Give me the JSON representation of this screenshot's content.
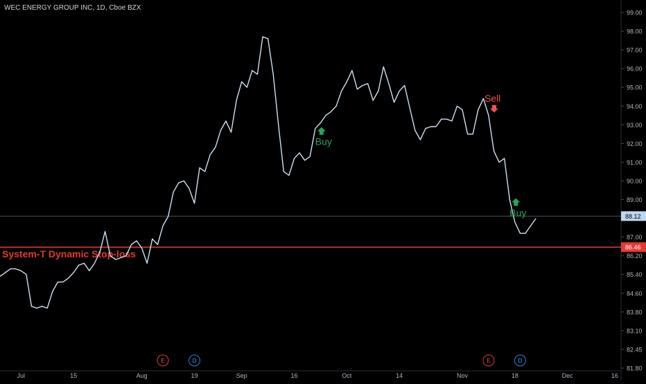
{
  "header": {
    "title": "WEC ENERGY GROUP INC, 1D, Cboe BZX"
  },
  "colors": {
    "background": "#000000",
    "line": "#cfe3f5",
    "stop_line": "#e53935",
    "buy": "#26a65b",
    "sell": "#ef5350",
    "axis_text": "#b2b5be",
    "last_price_bg": "#bcd7f1",
    "stop_badge_bg": "#e53935"
  },
  "chart_data": {
    "type": "line",
    "title": "WEC ENERGY GROUP INC, 1D, Cboe BZX",
    "y_ticks": [
      "99.00",
      "98.00",
      "97.00",
      "96.00",
      "95.00",
      "94.00",
      "93.00",
      "92.00",
      "91.00",
      "90.00",
      "89.00",
      "88.00",
      "87.00",
      "86.20",
      "85.40",
      "84.60",
      "83.80",
      "83.10",
      "82.45",
      "81.80"
    ],
    "x_ticks": [
      {
        "label": "Jul",
        "index": 4
      },
      {
        "label": "15",
        "index": 14
      },
      {
        "label": "Aug",
        "index": 27
      },
      {
        "label": "19",
        "index": 37
      },
      {
        "label": "Sep",
        "index": 46
      },
      {
        "label": "16",
        "index": 56
      },
      {
        "label": "Oct",
        "index": 66
      },
      {
        "label": "14",
        "index": 76
      },
      {
        "label": "Nov",
        "index": 88
      },
      {
        "label": "18",
        "index": 98
      },
      {
        "label": "Dec",
        "index": 108
      },
      {
        "label": "16",
        "index": 117
      }
    ],
    "series": [
      {
        "values": [
          84.9,
          85.1,
          85.3,
          85.3,
          85.2,
          85.0,
          83.3,
          83.2,
          83.3,
          83.2,
          84.1,
          84.6,
          84.6,
          84.8,
          85.1,
          85.5,
          85.6,
          85.2,
          85.6,
          86.2,
          87.3,
          86.0,
          85.8,
          85.9,
          86.0,
          86.6,
          86.8,
          86.4,
          85.6,
          86.9,
          86.6,
          87.6,
          88.1,
          89.4,
          89.9,
          90.0,
          89.6,
          88.8,
          90.7,
          90.5,
          91.4,
          91.8,
          92.7,
          93.2,
          92.6,
          94.3,
          95.3,
          95.0,
          95.9,
          95.7,
          97.7,
          97.6,
          95.7,
          93.0,
          90.5,
          90.3,
          91.2,
          91.5,
          91.1,
          91.3,
          92.8,
          93.1,
          93.5,
          93.7,
          94.0,
          94.8,
          95.3,
          95.9,
          94.9,
          95.1,
          95.2,
          94.3,
          94.8,
          96.1,
          95.2,
          94.2,
          94.8,
          95.1,
          93.9,
          92.7,
          92.2,
          92.8,
          92.9,
          92.9,
          93.3,
          93.3,
          93.2,
          94.0,
          93.8,
          92.5,
          92.5,
          93.8,
          94.4,
          93.5,
          91.6,
          91.0,
          91.2,
          89.0,
          87.8,
          87.2,
          87.2,
          87.6,
          88.0
        ]
      }
    ],
    "last_price": "88.12",
    "stop_level": "86.46",
    "stop_label": "System-T Dynamic Stop-loss",
    "signals": [
      {
        "type": "buy",
        "label": "Buy",
        "index": 60
      },
      {
        "type": "sell",
        "label": "Sell",
        "index": 93
      },
      {
        "type": "buy",
        "label": "Buy",
        "index": 97
      }
    ],
    "events": [
      {
        "label": "E",
        "index": 31,
        "kind": "earnings"
      },
      {
        "label": "D",
        "index": 37,
        "kind": "dividend"
      },
      {
        "label": "E",
        "index": 93,
        "kind": "earnings"
      },
      {
        "label": "D",
        "index": 99,
        "kind": "dividend"
      }
    ],
    "grid": false
  }
}
